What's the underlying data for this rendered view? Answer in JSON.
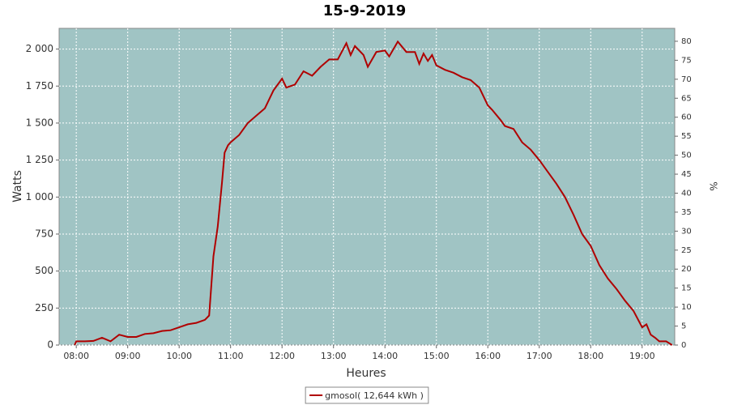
{
  "chart_data": {
    "type": "line",
    "title": "15-9-2019",
    "x_label": "Heures",
    "y_label": "Watts",
    "y2_label": "%",
    "x": [
      "07:58",
      "08:00",
      "08:10",
      "08:20",
      "08:30",
      "08:40",
      "08:50",
      "09:00",
      "09:10",
      "09:20",
      "09:30",
      "09:40",
      "09:50",
      "10:00",
      "10:10",
      "10:20",
      "10:30",
      "10:35",
      "10:40",
      "10:45",
      "10:50",
      "10:53",
      "10:57",
      "11:00",
      "11:10",
      "11:20",
      "11:30",
      "11:40",
      "11:50",
      "12:00",
      "12:05",
      "12:15",
      "12:25",
      "12:35",
      "12:45",
      "12:55",
      "13:05",
      "13:15",
      "13:20",
      "13:25",
      "13:35",
      "13:40",
      "13:50",
      "14:00",
      "14:05",
      "14:15",
      "14:25",
      "14:35",
      "14:40",
      "14:45",
      "14:50",
      "14:55",
      "15:00",
      "15:10",
      "15:20",
      "15:30",
      "15:40",
      "15:50",
      "16:00",
      "16:05",
      "16:15",
      "16:20",
      "16:30",
      "16:40",
      "16:50",
      "17:00",
      "17:10",
      "17:20",
      "17:30",
      "17:40",
      "17:50",
      "18:00",
      "18:10",
      "18:20",
      "18:30",
      "18:40",
      "18:50",
      "19:00",
      "19:05",
      "19:10",
      "19:15",
      "19:20",
      "19:28",
      "19:35"
    ],
    "series": [
      {
        "name": "gmosol( 12,644 kWh )",
        "color": "#b00000",
        "values": [
          0,
          25,
          25,
          28,
          50,
          25,
          70,
          55,
          55,
          75,
          80,
          95,
          100,
          120,
          140,
          150,
          170,
          200,
          600,
          800,
          1100,
          1300,
          1350,
          1370,
          1420,
          1500,
          1550,
          1600,
          1720,
          1800,
          1740,
          1760,
          1850,
          1820,
          1880,
          1930,
          1930,
          2040,
          1960,
          2020,
          1960,
          1880,
          1980,
          1990,
          1950,
          2050,
          1980,
          1980,
          1900,
          1970,
          1920,
          1960,
          1890,
          1860,
          1840,
          1810,
          1790,
          1740,
          1620,
          1590,
          1520,
          1480,
          1460,
          1370,
          1320,
          1250,
          1170,
          1090,
          1000,
          880,
          750,
          670,
          540,
          450,
          380,
          300,
          230,
          120,
          140,
          70,
          50,
          25,
          25,
          0
        ]
      }
    ],
    "xlim": [
      "07:40",
      "19:38"
    ],
    "xticks": [
      "08:00",
      "09:00",
      "10:00",
      "11:00",
      "12:00",
      "13:00",
      "14:00",
      "15:00",
      "16:00",
      "17:00",
      "18:00",
      "19:00"
    ],
    "ylim": [
      0,
      2140
    ],
    "yticks": [
      0,
      250,
      500,
      750,
      {
        "value": 1000,
        "label": "1 000"
      },
      {
        "value": 1250,
        "label": "1 250"
      },
      {
        "value": 1500,
        "label": "1 500"
      },
      {
        "value": 1750,
        "label": "1 750"
      },
      {
        "value": 2000,
        "label": "2 000"
      }
    ],
    "y2lim": [
      0,
      83.4
    ],
    "y2ticks": [
      0,
      5,
      10,
      15,
      20,
      25,
      30,
      35,
      40,
      45,
      50,
      55,
      60,
      65,
      70,
      75,
      80
    ],
    "grid": true,
    "background": "#a0c4c4"
  }
}
